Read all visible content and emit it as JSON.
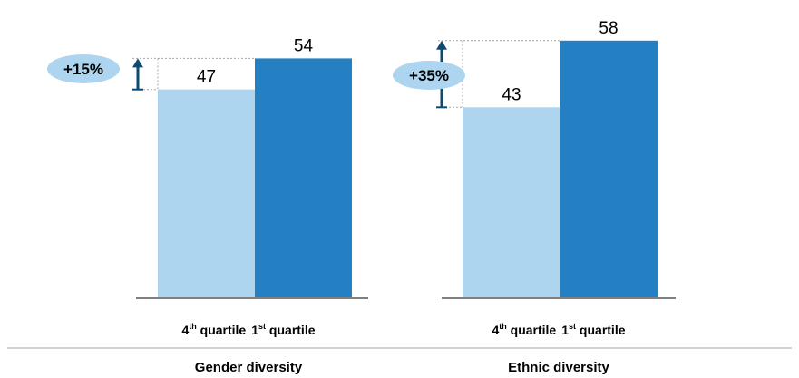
{
  "chart_data": {
    "type": "bar",
    "colors": {
      "q4": "#aed5f0",
      "q1": "#2580c3",
      "badge": "#aed5f0",
      "arrow": "#0d4a70",
      "axis": "#808080",
      "dashed": "#a6a6a6"
    },
    "groups": [
      {
        "name": "Gender diversity",
        "categories": [
          {
            "ord": "4",
            "sup": "th",
            "word": " quartile"
          },
          {
            "ord": "1",
            "sup": "st",
            "word": " quartile"
          }
        ],
        "values": [
          47,
          54
        ],
        "value_labels": [
          "47",
          "54"
        ],
        "badge": "+15%"
      },
      {
        "name": "Ethnic diversity",
        "categories": [
          {
            "ord": "4",
            "sup": "th",
            "word": " quartile"
          },
          {
            "ord": "1",
            "sup": "st",
            "word": " quartile"
          }
        ],
        "values": [
          43,
          58
        ],
        "value_labels": [
          "43",
          "58"
        ],
        "badge": "+35%"
      }
    ]
  }
}
